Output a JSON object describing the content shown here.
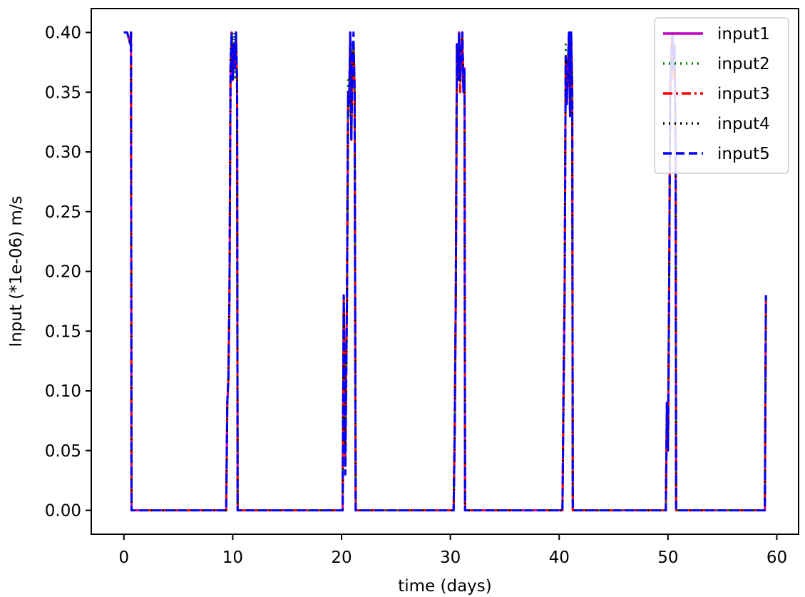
{
  "chart_data": {
    "type": "line",
    "title": "",
    "xlabel": "time (days)",
    "ylabel": "Input (*1e-06) m/s",
    "xlim": [
      -3,
      62
    ],
    "ylim": [
      -0.02,
      0.42
    ],
    "xticks": [
      0,
      10,
      20,
      30,
      40,
      50,
      60
    ],
    "xtick_labels": [
      "0",
      "10",
      "20",
      "30",
      "40",
      "50",
      "60"
    ],
    "yticks": [
      0.0,
      0.05,
      0.1,
      0.15,
      0.2,
      0.25,
      0.3,
      0.35,
      0.4
    ],
    "ytick_labels": [
      "0.00",
      "0.05",
      "0.10",
      "0.15",
      "0.20",
      "0.25",
      "0.30",
      "0.35",
      "0.40"
    ],
    "grid": false,
    "legend_position": "top-right",
    "series": [
      {
        "name": "input1",
        "color": "#bf00bf",
        "style": "solid",
        "x": [
          0,
          0.3,
          0.6,
          0.65,
          0.7,
          9.4,
          9.5,
          9.6,
          9.7,
          9.8,
          9.9,
          10.0,
          10.1,
          10.2,
          10.3,
          10.4,
          10.45,
          20.1,
          20.2,
          20.35,
          20.5,
          20.6,
          20.7,
          20.8,
          20.9,
          21.0,
          21.1,
          21.2,
          21.3,
          30.3,
          30.4,
          30.5,
          30.6,
          30.7,
          30.8,
          30.9,
          31.0,
          31.1,
          31.2,
          31.3,
          31.35,
          40.3,
          40.4,
          40.5,
          40.6,
          40.7,
          40.8,
          40.9,
          41.0,
          41.1,
          41.2,
          41.25,
          49.8,
          49.9,
          50.0,
          50.1,
          50.2,
          50.3,
          50.4,
          50.5,
          50.6,
          50.7,
          50.75,
          58.9,
          59.0
        ],
        "y": [
          0.4,
          0.4,
          0.39,
          0.4,
          0.0,
          0.0,
          0.09,
          0.11,
          0.18,
          0.37,
          0.4,
          0.36,
          0.39,
          0.37,
          0.4,
          0.36,
          0.0,
          0.0,
          0.18,
          0.05,
          0.18,
          0.35,
          0.34,
          0.4,
          0.31,
          0.38,
          0.39,
          0.35,
          0.0,
          0.0,
          0.07,
          0.18,
          0.39,
          0.36,
          0.4,
          0.36,
          0.38,
          0.4,
          0.35,
          0.37,
          0.0,
          0.0,
          0.1,
          0.18,
          0.38,
          0.34,
          0.37,
          0.4,
          0.33,
          0.4,
          0.35,
          0.0,
          0.0,
          0.09,
          0.05,
          0.18,
          0.35,
          0.38,
          0.4,
          0.37,
          0.39,
          0.3,
          0.0,
          0.0,
          0.18
        ]
      },
      {
        "name": "input2",
        "color": "#007f00",
        "style": "dotted",
        "x": [
          0,
          0.3,
          0.6,
          0.65,
          0.7,
          9.4,
          9.5,
          9.6,
          9.7,
          9.8,
          9.9,
          10.0,
          10.1,
          10.2,
          10.3,
          10.4,
          10.45,
          20.1,
          20.2,
          20.35,
          20.5,
          20.6,
          20.7,
          20.8,
          20.9,
          21.0,
          21.1,
          21.2,
          21.3,
          30.3,
          30.4,
          30.5,
          30.6,
          30.7,
          30.8,
          30.9,
          31.0,
          31.1,
          31.2,
          31.3,
          31.35,
          40.3,
          40.4,
          40.5,
          40.6,
          40.7,
          40.8,
          40.9,
          41.0,
          41.1,
          41.2,
          41.25,
          49.8,
          49.9,
          50.0,
          50.1,
          50.2,
          50.3,
          50.4,
          50.5,
          50.6,
          50.7,
          50.75,
          58.9,
          59.0
        ],
        "y": [
          0.4,
          0.4,
          0.39,
          0.4,
          0.0,
          0.0,
          0.09,
          0.11,
          0.18,
          0.38,
          0.39,
          0.37,
          0.4,
          0.36,
          0.39,
          0.36,
          0.0,
          0.0,
          0.18,
          0.04,
          0.17,
          0.36,
          0.33,
          0.39,
          0.32,
          0.39,
          0.38,
          0.35,
          0.0,
          0.0,
          0.06,
          0.18,
          0.38,
          0.37,
          0.39,
          0.37,
          0.39,
          0.39,
          0.36,
          0.36,
          0.0,
          0.0,
          0.09,
          0.18,
          0.39,
          0.35,
          0.38,
          0.39,
          0.34,
          0.39,
          0.36,
          0.0,
          0.0,
          0.08,
          0.06,
          0.18,
          0.36,
          0.39,
          0.39,
          0.38,
          0.38,
          0.31,
          0.0,
          0.0,
          0.18
        ]
      },
      {
        "name": "input3",
        "color": "#ff0000",
        "style": "dashdot",
        "x": [
          0,
          0.3,
          0.6,
          0.65,
          0.7,
          9.4,
          9.5,
          9.6,
          9.7,
          9.8,
          9.9,
          10.0,
          10.1,
          10.2,
          10.3,
          10.4,
          10.45,
          20.1,
          20.2,
          20.35,
          20.5,
          20.6,
          20.7,
          20.8,
          20.9,
          21.0,
          21.1,
          21.2,
          21.3,
          30.3,
          30.4,
          30.5,
          30.6,
          30.7,
          30.8,
          30.9,
          31.0,
          31.1,
          31.2,
          31.3,
          31.35,
          40.3,
          40.4,
          40.5,
          40.6,
          40.7,
          40.8,
          40.9,
          41.0,
          41.1,
          41.2,
          41.25,
          49.8,
          49.9,
          50.0,
          50.1,
          50.2,
          50.3,
          50.4,
          50.5,
          50.6,
          50.7,
          50.75,
          58.9,
          59.0
        ],
        "y": [
          0.4,
          0.4,
          0.39,
          0.4,
          0.0,
          0.0,
          0.09,
          0.11,
          0.18,
          0.37,
          0.4,
          0.37,
          0.38,
          0.37,
          0.4,
          0.35,
          0.0,
          0.0,
          0.18,
          0.04,
          0.18,
          0.34,
          0.35,
          0.4,
          0.32,
          0.37,
          0.39,
          0.36,
          0.0,
          0.0,
          0.07,
          0.18,
          0.39,
          0.36,
          0.4,
          0.35,
          0.38,
          0.4,
          0.36,
          0.37,
          0.0,
          0.0,
          0.1,
          0.18,
          0.38,
          0.35,
          0.36,
          0.4,
          0.33,
          0.39,
          0.36,
          0.0,
          0.0,
          0.09,
          0.05,
          0.18,
          0.35,
          0.39,
          0.4,
          0.36,
          0.39,
          0.32,
          0.0,
          0.0,
          0.18
        ]
      },
      {
        "name": "input4",
        "color": "#000000",
        "style": "dotted",
        "x": [
          0,
          0.3,
          0.6,
          0.65,
          0.7,
          9.4,
          9.5,
          9.6,
          9.7,
          9.8,
          9.9,
          10.0,
          10.1,
          10.2,
          10.3,
          10.4,
          10.45,
          20.1,
          20.2,
          20.35,
          20.5,
          20.6,
          20.7,
          20.8,
          20.9,
          21.0,
          21.1,
          21.2,
          21.3,
          30.3,
          30.4,
          30.5,
          30.6,
          30.7,
          30.8,
          30.9,
          31.0,
          31.1,
          31.2,
          31.3,
          31.35,
          40.3,
          40.4,
          40.5,
          40.6,
          40.7,
          40.8,
          40.9,
          41.0,
          41.1,
          41.2,
          41.25,
          49.8,
          49.9,
          50.0,
          50.1,
          50.2,
          50.3,
          50.4,
          50.5,
          50.6,
          50.7,
          50.75,
          58.9,
          59.0
        ],
        "y": [
          0.4,
          0.4,
          0.39,
          0.4,
          0.0,
          0.0,
          0.09,
          0.11,
          0.18,
          0.38,
          0.4,
          0.36,
          0.39,
          0.38,
          0.39,
          0.36,
          0.0,
          0.0,
          0.18,
          0.05,
          0.17,
          0.35,
          0.34,
          0.39,
          0.31,
          0.38,
          0.39,
          0.35,
          0.0,
          0.0,
          0.06,
          0.18,
          0.39,
          0.36,
          0.39,
          0.36,
          0.39,
          0.4,
          0.35,
          0.36,
          0.0,
          0.0,
          0.1,
          0.18,
          0.38,
          0.34,
          0.37,
          0.39,
          0.33,
          0.4,
          0.35,
          0.0,
          0.0,
          0.09,
          0.05,
          0.18,
          0.35,
          0.38,
          0.39,
          0.37,
          0.39,
          0.3,
          0.0,
          0.0,
          0.18
        ]
      },
      {
        "name": "input5",
        "color": "#0000ff",
        "style": "dashed",
        "x": [
          0,
          0.3,
          0.6,
          0.65,
          0.7,
          9.4,
          9.5,
          9.6,
          9.7,
          9.8,
          9.9,
          10.0,
          10.1,
          10.2,
          10.3,
          10.4,
          10.45,
          20.1,
          20.2,
          20.35,
          20.5,
          20.6,
          20.7,
          20.8,
          20.9,
          21.0,
          21.1,
          21.2,
          21.3,
          30.3,
          30.4,
          30.5,
          30.6,
          30.7,
          30.8,
          30.9,
          31.0,
          31.1,
          31.2,
          31.3,
          31.35,
          40.3,
          40.4,
          40.5,
          40.6,
          40.7,
          40.8,
          40.9,
          41.0,
          41.1,
          41.2,
          41.25,
          49.8,
          49.9,
          50.0,
          50.1,
          50.2,
          50.3,
          50.4,
          50.5,
          50.6,
          50.7,
          50.75,
          58.9,
          59.0
        ],
        "y": [
          0.4,
          0.4,
          0.39,
          0.4,
          0.0,
          0.0,
          0.09,
          0.11,
          0.18,
          0.37,
          0.4,
          0.36,
          0.39,
          0.37,
          0.4,
          0.36,
          0.0,
          0.0,
          0.18,
          0.03,
          0.18,
          0.35,
          0.34,
          0.4,
          0.31,
          0.38,
          0.4,
          0.35,
          0.0,
          0.0,
          0.07,
          0.18,
          0.39,
          0.36,
          0.4,
          0.36,
          0.38,
          0.4,
          0.35,
          0.37,
          0.0,
          0.0,
          0.1,
          0.18,
          0.38,
          0.34,
          0.37,
          0.4,
          0.33,
          0.4,
          0.35,
          0.0,
          0.0,
          0.09,
          0.05,
          0.18,
          0.35,
          0.38,
          0.4,
          0.37,
          0.39,
          0.3,
          0.0,
          0.0,
          0.18
        ]
      }
    ]
  }
}
